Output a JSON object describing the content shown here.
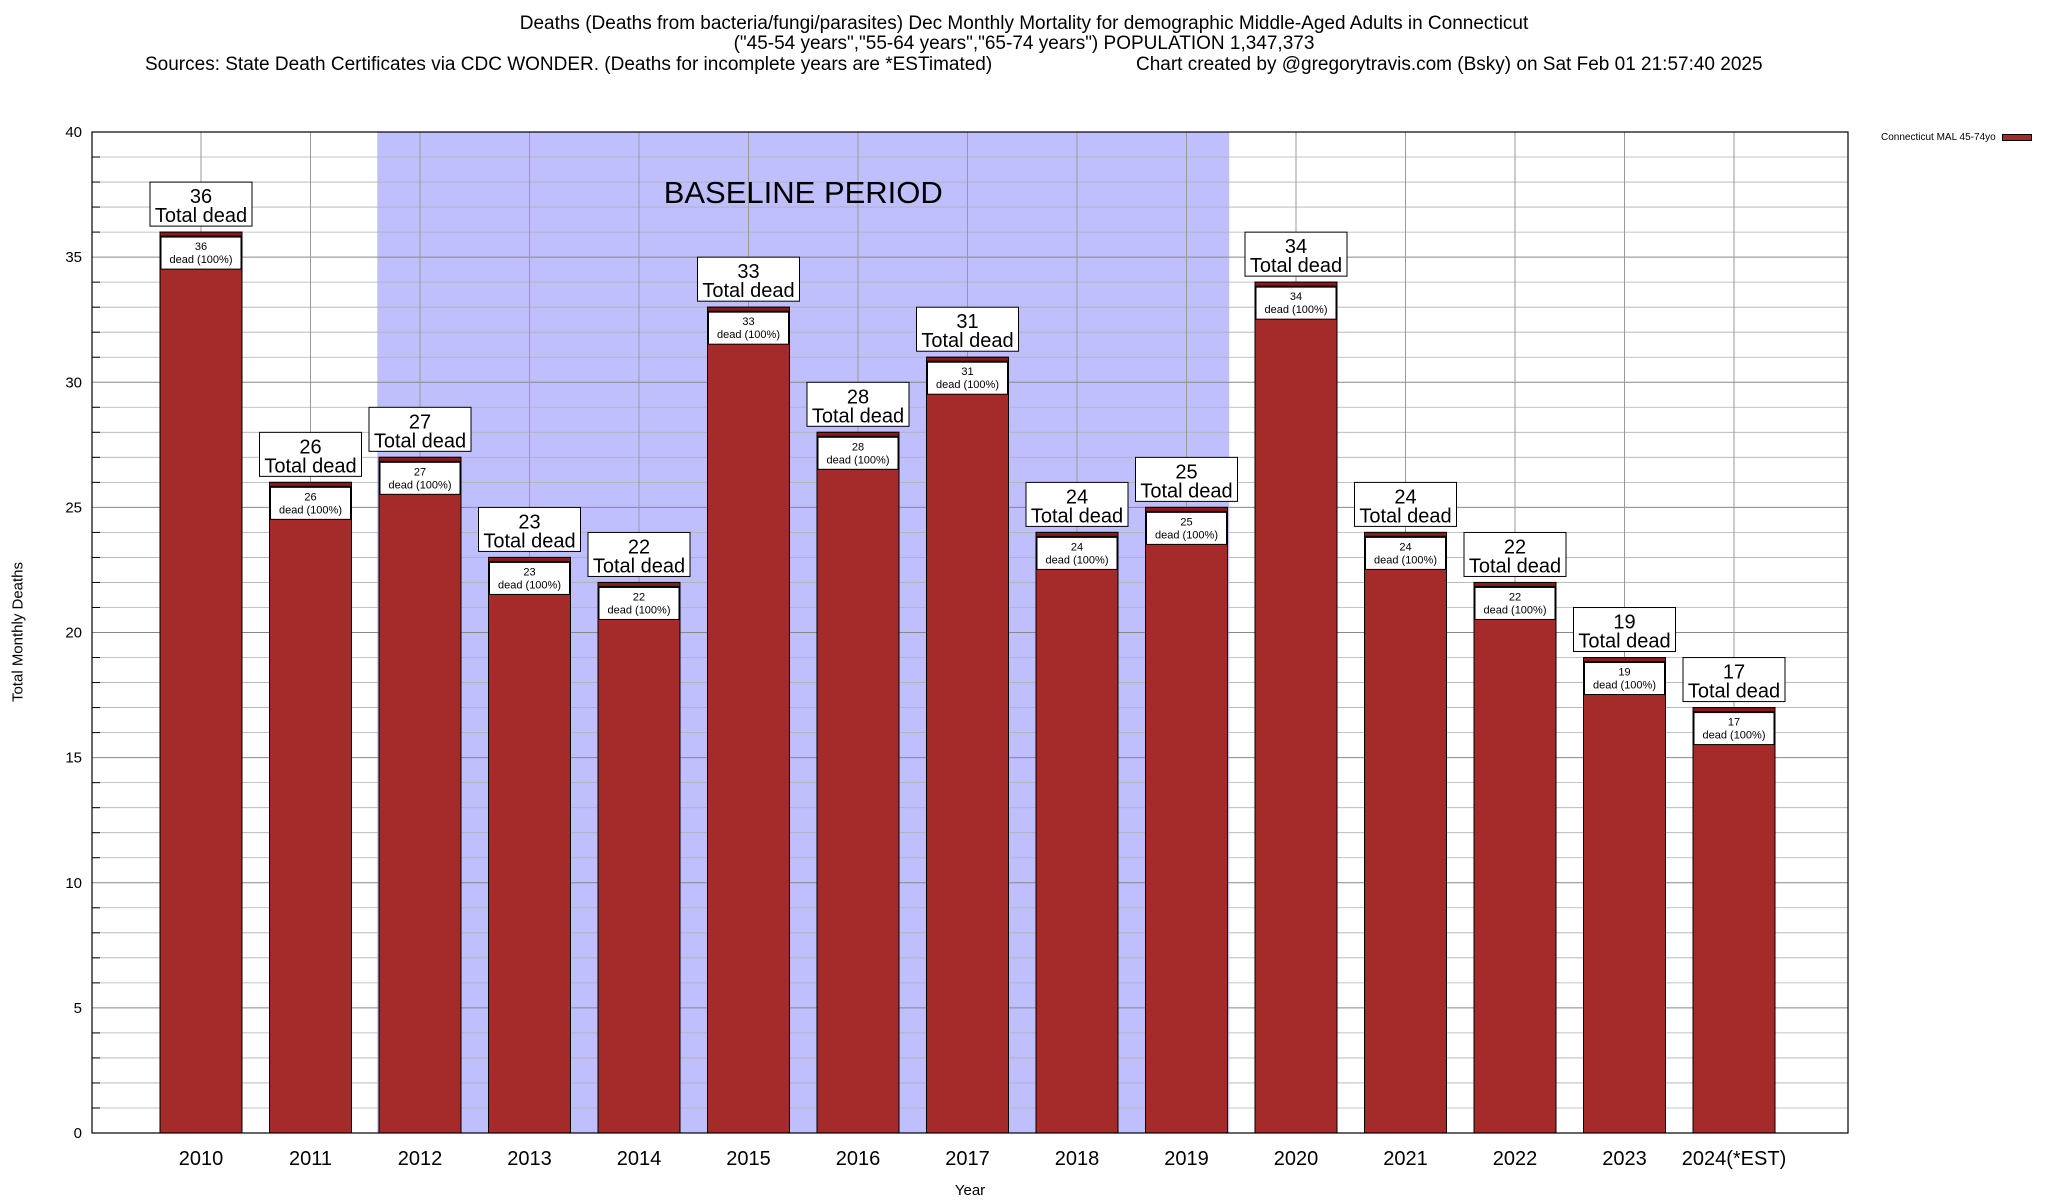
{
  "header": {
    "title_line1": "Deaths (Deaths from bacteria/fungi/parasites) Dec Monthly Mortality for demographic Middle-Aged Adults in Connecticut",
    "title_line2": "(\"45-54 years\",\"55-64 years\",\"65-74 years\") POPULATION 1,347,373",
    "sources": "Sources: State Death Certificates via CDC WONDER. (Deaths for incomplete years are *ESTimated)",
    "credit": "Chart created by @gregorytravis.com (Bsky) on Sat Feb 01 21:57:40 2025"
  },
  "legend": {
    "label": "Connecticut MAL 45-74yo"
  },
  "colors": {
    "bar": "#a52a2a",
    "bar_cap": "#8b1a1a",
    "baseline_band": "#bfbffd",
    "grid": "#b0b0b0"
  },
  "chart_data": {
    "type": "bar",
    "title": "Deaths (Deaths from bacteria/fungi/parasites) Dec Monthly Mortality for demographic Middle-Aged Adults in Connecticut",
    "xlabel": "Year",
    "ylabel": "Total Monthly Deaths",
    "ylim": [
      0,
      40
    ],
    "yticks": [
      0,
      5,
      10,
      15,
      20,
      25,
      30,
      35,
      40
    ],
    "grid": true,
    "legend_position": "top-right",
    "categories": [
      "2010",
      "2011",
      "2012",
      "2013",
      "2014",
      "2015",
      "2016",
      "2017",
      "2018",
      "2019",
      "2020",
      "2021",
      "2022",
      "2023",
      "2024(*EST)"
    ],
    "series": [
      {
        "name": "Connecticut MAL 45-74yo",
        "values": [
          36,
          26,
          27,
          23,
          22,
          33,
          28,
          31,
          24,
          25,
          34,
          24,
          22,
          19,
          17
        ]
      }
    ],
    "top_label_suffix": "Total dead",
    "inner_label_suffix": "dead (100%)",
    "baseline_period": {
      "label": "BASELINE PERIOD",
      "from": "2012",
      "to": "2019"
    }
  }
}
